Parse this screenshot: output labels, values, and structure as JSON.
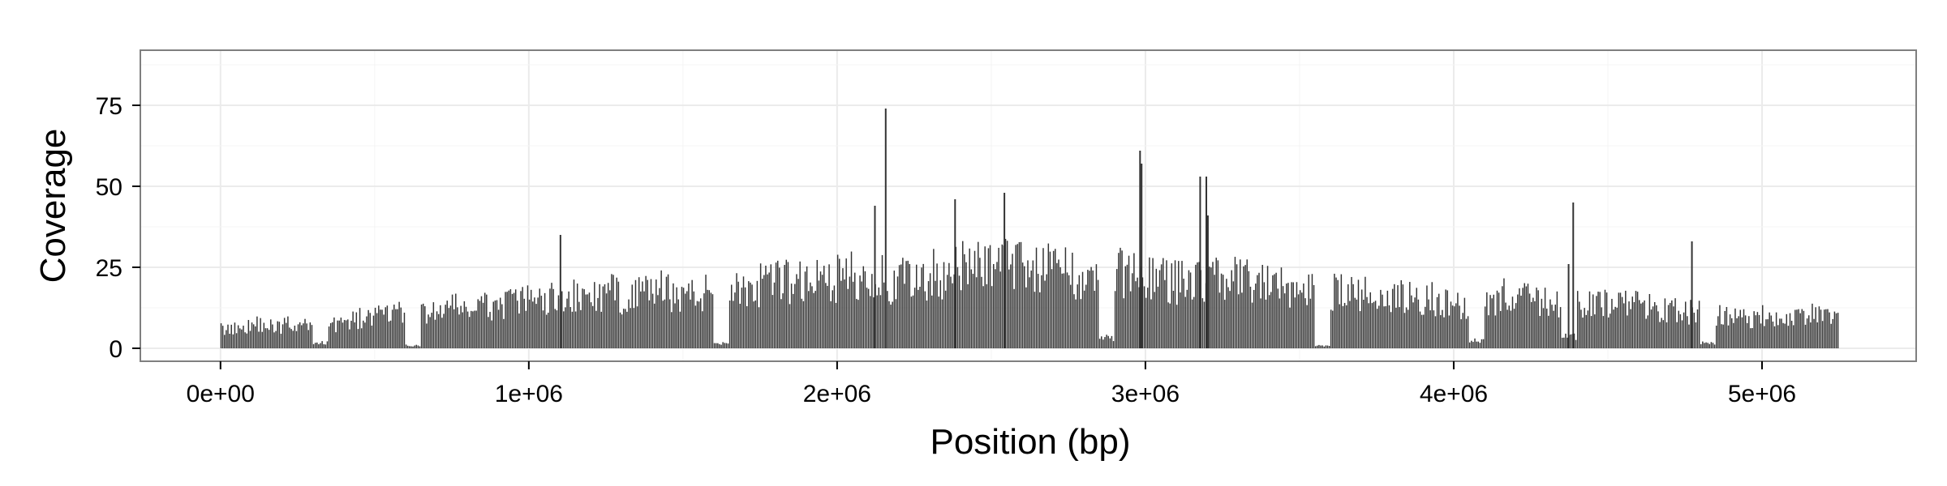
{
  "chart_data": {
    "type": "bar",
    "xlabel": "Position (bp)",
    "ylabel": "Coverage",
    "xlim": [
      -260000,
      5500000
    ],
    "ylim": [
      -4,
      92
    ],
    "x_ticks": [
      0,
      1000000,
      2000000,
      3000000,
      4000000,
      5000000
    ],
    "x_tick_labels": [
      "0e+00",
      "1e+06",
      "2e+06",
      "3e+06",
      "4e+06",
      "5e+06"
    ],
    "y_ticks": [
      0,
      25,
      50,
      75
    ],
    "y_tick_labels": [
      "0",
      "25",
      "50",
      "75"
    ],
    "grid": true,
    "bar_color": "#333333",
    "panel_border_color": "#7f7f7f",
    "grid_color": "#ebebeb",
    "x": [
      0,
      50000,
      100000,
      150000,
      200000,
      250000,
      300000,
      350000,
      400000,
      450000,
      500000,
      550000,
      600000,
      650000,
      700000,
      750000,
      800000,
      850000,
      900000,
      950000,
      1000000,
      1050000,
      1100000,
      1150000,
      1200000,
      1250000,
      1300000,
      1350000,
      1400000,
      1450000,
      1500000,
      1550000,
      1600000,
      1650000,
      1700000,
      1750000,
      1800000,
      1850000,
      1900000,
      1950000,
      2000000,
      2050000,
      2100000,
      2150000,
      2200000,
      2250000,
      2300000,
      2350000,
      2400000,
      2450000,
      2500000,
      2550000,
      2600000,
      2650000,
      2700000,
      2750000,
      2800000,
      2850000,
      2900000,
      2950000,
      3000000,
      3050000,
      3100000,
      3150000,
      3200000,
      3250000,
      3300000,
      3350000,
      3400000,
      3450000,
      3500000,
      3550000,
      3600000,
      3650000,
      3700000,
      3750000,
      3800000,
      3850000,
      3900000,
      3950000,
      4000000,
      4050000,
      4100000,
      4150000,
      4200000,
      4250000,
      4300000,
      4350000,
      4400000,
      4450000,
      4500000,
      4550000,
      4600000,
      4650000,
      4700000,
      4750000,
      4800000,
      4850000,
      4900000,
      4950000,
      5000000,
      5050000,
      5100000,
      5150000,
      5200000
    ],
    "values": [
      7,
      8,
      9,
      8,
      9,
      8,
      2,
      9,
      10,
      11,
      12,
      13,
      1,
      13,
      14,
      15,
      14,
      15,
      16,
      17,
      17,
      18,
      19,
      18,
      19,
      20,
      19,
      20,
      21,
      20,
      19,
      20,
      2,
      22,
      21,
      23,
      24,
      24,
      25,
      25,
      26,
      25,
      27,
      21,
      25,
      26,
      27,
      28,
      29,
      30,
      31,
      32,
      30,
      29,
      28,
      27,
      26,
      4,
      27,
      27,
      26,
      25,
      24,
      25,
      26,
      25,
      24,
      23,
      22,
      22,
      21,
      1,
      21,
      20,
      20,
      19,
      19,
      18,
      18,
      17,
      16,
      3,
      18,
      19,
      18,
      17,
      16,
      4,
      16,
      16,
      15,
      16,
      15,
      14,
      14,
      13,
      2,
      12,
      11,
      11,
      12,
      12,
      11,
      12,
      11
    ],
    "spikes": [
      {
        "x": 1100000,
        "value": 35
      },
      {
        "x": 2155000,
        "value": 74
      },
      {
        "x": 2120000,
        "value": 44
      },
      {
        "x": 2380000,
        "value": 46
      },
      {
        "x": 2540000,
        "value": 48
      },
      {
        "x": 2980000,
        "value": 61
      },
      {
        "x": 2985000,
        "value": 57
      },
      {
        "x": 3175000,
        "value": 53
      },
      {
        "x": 3195000,
        "value": 53
      },
      {
        "x": 3200000,
        "value": 41
      },
      {
        "x": 4385000,
        "value": 45
      },
      {
        "x": 4370000,
        "value": 26
      },
      {
        "x": 4770000,
        "value": 33
      }
    ]
  }
}
